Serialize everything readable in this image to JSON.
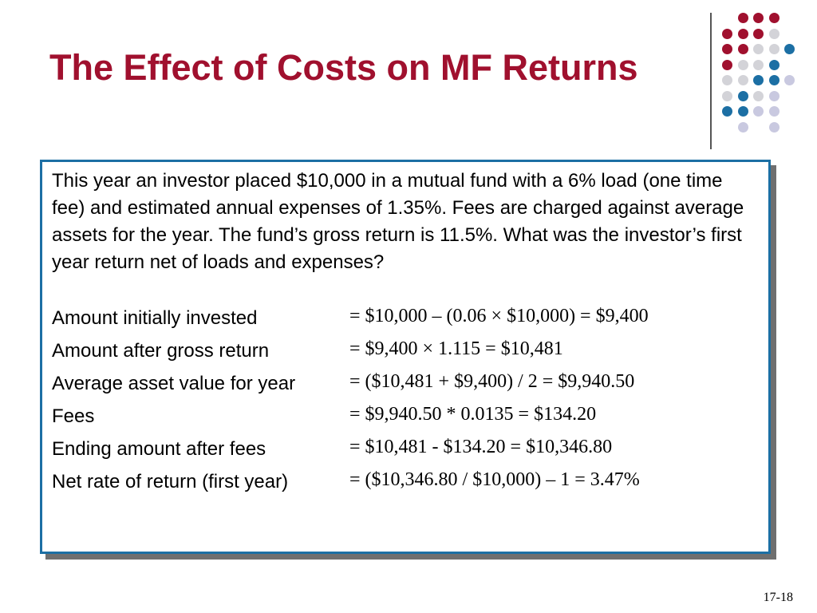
{
  "slide": {
    "title": "The Effect of Costs on MF Returns",
    "intro": "This year an investor placed $10,000 in a mutual fund with a 6% load (one time fee) and estimated annual expenses of 1.35%.  Fees are charged against average assets for the year.  The fund’s gross return is 11.5%.  What was the investor’s first year return net of loads and expenses?",
    "rows": [
      {
        "label": "Amount initially invested",
        "formula": "= $10,000 – (0.06 × $10,000) = $9,400"
      },
      {
        "label": "Amount after gross return",
        "formula": "= $9,400 × 1.115 = $10,481"
      },
      {
        "label": "Average asset value for year",
        "formula": "= ($10,481 + $9,400) / 2 = $9,940.50"
      },
      {
        "label": "Fees",
        "formula": "= $9,940.50 * 0.0135 = $134.20"
      },
      {
        "label": "Ending amount after fees",
        "formula": "= $10,481 - $134.20 = $10,346.80"
      },
      {
        "label": "Net rate of return (first year)",
        "formula": "= ($10,346.80 / $10,000) – 1 = 3.47%"
      }
    ],
    "page_number": "17-18"
  },
  "theme": {
    "title_color": "#a0102e",
    "box_border_color": "#1c6fa4",
    "dot_colors": {
      "red": "#a0102e",
      "gray": "#d3d3d8",
      "blue": "#1c6fa4",
      "lavender": "#c9c9e0"
    }
  },
  "decoration": {
    "dot_grid": [
      [
        "none",
        "red",
        "red",
        "red",
        "none"
      ],
      [
        "red",
        "red",
        "red",
        "gray",
        "none"
      ],
      [
        "red",
        "red",
        "gray",
        "gray",
        "blue"
      ],
      [
        "red",
        "gray",
        "gray",
        "blue",
        "none"
      ],
      [
        "gray",
        "gray",
        "blue",
        "blue",
        "lavender"
      ],
      [
        "gray",
        "blue",
        "gray",
        "lavender",
        "none"
      ],
      [
        "blue",
        "blue",
        "lavender",
        "lavender",
        "none"
      ],
      [
        "none",
        "lavender",
        "none",
        "lavender",
        "none"
      ]
    ]
  }
}
